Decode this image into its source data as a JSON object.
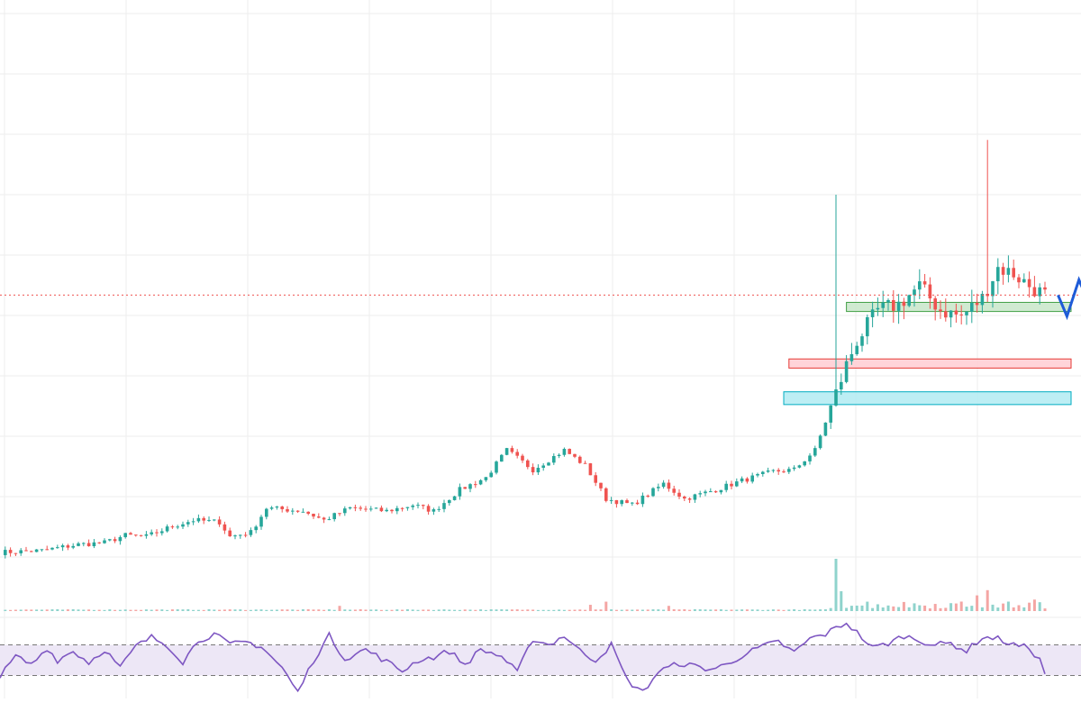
{
  "colors": {
    "background": "#ffffff",
    "grid": "#eeeeee",
    "up": "#26a69a",
    "down": "#ef5350",
    "up_volume": "#8fd3cc",
    "down_volume": "#f4a6a4",
    "last_price_line": "#ef5350",
    "rsi_line": "#7e57c2",
    "rsi_band_fill": "#ede7f6",
    "rsi_band_border": "#777777",
    "zone_green_fill": "#c8e6c9",
    "zone_green_border": "#43a047",
    "zone_red_fill": "#ffcdd2",
    "zone_red_border": "#e53935",
    "zone_cyan_fill": "#b2ebf2",
    "zone_cyan_border": "#00acc1",
    "projection": "#1e5bd8"
  },
  "chart_data": {
    "type": "candlestick",
    "title": "",
    "xlabel": "",
    "ylabel": "",
    "grid": true,
    "legend": "none",
    "price_range": [
      0,
      100
    ],
    "last_price": 51.5,
    "candles": [],
    "candle_path": [
      [
        0,
        9.2
      ],
      [
        8,
        9.5
      ],
      [
        15,
        10.5
      ],
      [
        20,
        10.8
      ],
      [
        24,
        12
      ],
      [
        28,
        11.8
      ],
      [
        33,
        13.5
      ],
      [
        37,
        14.5
      ],
      [
        42,
        14.2
      ],
      [
        44,
        11.8
      ],
      [
        48,
        12.5
      ],
      [
        51,
        16.5
      ],
      [
        58,
        16
      ],
      [
        62,
        14.5
      ],
      [
        67,
        16.5
      ],
      [
        74,
        16
      ],
      [
        79,
        17
      ],
      [
        83,
        16
      ],
      [
        88,
        19.5
      ],
      [
        93,
        21.5
      ],
      [
        97,
        26
      ],
      [
        102,
        22.8
      ],
      [
        108,
        26
      ],
      [
        112,
        23.5
      ],
      [
        116,
        18
      ],
      [
        121,
        17
      ],
      [
        127,
        20.5
      ],
      [
        131,
        18
      ],
      [
        137,
        19.5
      ],
      [
        142,
        21
      ],
      [
        148,
        22.5
      ],
      [
        152,
        22.8
      ],
      [
        156,
        26
      ],
      [
        159,
        33
      ],
      [
        162,
        40
      ],
      [
        164,
        44
      ],
      [
        168,
        49
      ],
      [
        172,
        50
      ],
      [
        176,
        53
      ],
      [
        180,
        49
      ],
      [
        184,
        48
      ],
      [
        188,
        51
      ],
      [
        191,
        56
      ],
      [
        194,
        55
      ],
      [
        197,
        53
      ],
      [
        199,
        52
      ],
      [
        200,
        51.5
      ]
    ],
    "candle_count": 200,
    "spikes": [
      {
        "candle": 160,
        "high": 68
      },
      {
        "candle": 189,
        "high": 77
      }
    ],
    "volume": {
      "range": [
        0,
        100
      ],
      "base": 2,
      "spikes": [
        {
          "candle": 160,
          "value": 100
        },
        {
          "candle": 161,
          "value": 38
        },
        {
          "candle": 189,
          "value": 40
        },
        {
          "candle": 187,
          "value": 30
        },
        {
          "candle": 166,
          "value": 18
        },
        {
          "candle": 198,
          "value": 22
        },
        {
          "candle": 116,
          "value": 18
        },
        {
          "candle": 113,
          "value": 12
        },
        {
          "candle": 65,
          "value": 10
        },
        {
          "candle": 128,
          "value": 10
        }
      ]
    },
    "zones": [
      {
        "color": "green",
        "from_candle": 162,
        "to_candle": 205,
        "low": 48.8,
        "high": 50.3
      },
      {
        "color": "red",
        "from_candle": 151,
        "to_candle": 205,
        "low": 39.5,
        "high": 41.0
      },
      {
        "color": "cyan",
        "from_candle": 150,
        "to_candle": 205,
        "low": 33.5,
        "high": 35.6
      }
    ],
    "projection": [
      [
        202.5,
        51.5
      ],
      [
        204.2,
        48
      ],
      [
        206.5,
        54
      ],
      [
        208.5,
        50
      ]
    ],
    "rsi": {
      "range": [
        0,
        100
      ],
      "upper_band": 70,
      "lower_band": 30,
      "path": [
        [
          0,
          28
        ],
        [
          3,
          55
        ],
        [
          6,
          44
        ],
        [
          9,
          66
        ],
        [
          11,
          50
        ],
        [
          14,
          62
        ],
        [
          17,
          47
        ],
        [
          20,
          64
        ],
        [
          23,
          40
        ],
        [
          26,
          68
        ],
        [
          29,
          80
        ],
        [
          32,
          70
        ],
        [
          35,
          48
        ],
        [
          38,
          76
        ],
        [
          41,
          84
        ],
        [
          44,
          70
        ],
        [
          47,
          74
        ],
        [
          50,
          68
        ],
        [
          54,
          40
        ],
        [
          57,
          8
        ],
        [
          60,
          50
        ],
        [
          63,
          82
        ],
        [
          66,
          52
        ],
        [
          70,
          64
        ],
        [
          74,
          48
        ],
        [
          77,
          36
        ],
        [
          80,
          50
        ],
        [
          83,
          54
        ],
        [
          86,
          62
        ],
        [
          89,
          44
        ],
        [
          92,
          64
        ],
        [
          96,
          55
        ],
        [
          99,
          34
        ],
        [
          102,
          78
        ],
        [
          105,
          70
        ],
        [
          108,
          82
        ],
        [
          111,
          62
        ],
        [
          114,
          50
        ],
        [
          117,
          70
        ],
        [
          120,
          24
        ],
        [
          123,
          8
        ],
        [
          126,
          35
        ],
        [
          130,
          46
        ],
        [
          133,
          42
        ],
        [
          136,
          38
        ],
        [
          139,
          44
        ],
        [
          142,
          56
        ],
        [
          146,
          68
        ],
        [
          149,
          74
        ],
        [
          152,
          60
        ],
        [
          155,
          78
        ],
        [
          158,
          84
        ],
        [
          160,
          92
        ],
        [
          162,
          99
        ],
        [
          164,
          86
        ],
        [
          167,
          66
        ],
        [
          170,
          72
        ],
        [
          173,
          82
        ],
        [
          176,
          76
        ],
        [
          179,
          70
        ],
        [
          182,
          72
        ],
        [
          185,
          62
        ],
        [
          188,
          80
        ],
        [
          191,
          78
        ],
        [
          194,
          70
        ],
        [
          197,
          66
        ],
        [
          199,
          50
        ],
        [
          200,
          32
        ]
      ]
    }
  }
}
